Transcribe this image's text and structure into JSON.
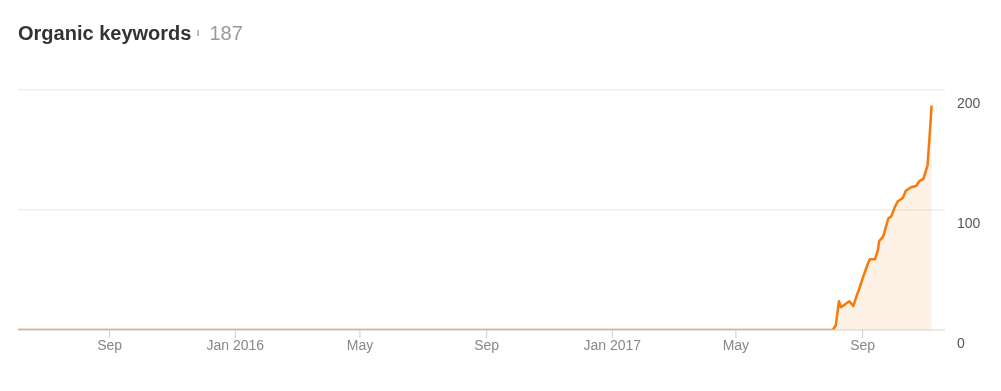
{
  "chart_data": {
    "type": "area",
    "title": "Organic keywords",
    "subtitle": "187",
    "x": [
      "2015-06-04",
      "2017-08-03",
      "2017-08-06",
      "2017-08-09",
      "2017-08-11",
      "2017-08-19",
      "2017-08-23",
      "2017-08-26",
      "2017-08-29",
      "2017-09-01",
      "2017-09-06",
      "2017-09-08",
      "2017-09-13",
      "2017-09-16",
      "2017-09-17",
      "2017-09-21",
      "2017-09-26",
      "2017-09-29",
      "2017-10-02",
      "2017-10-05",
      "2017-10-10",
      "2017-10-13",
      "2017-10-18",
      "2017-10-23",
      "2017-10-26",
      "2017-10-30",
      "2017-11-03",
      "2017-11-05",
      "2017-11-07"
    ],
    "series": [
      {
        "color": "#f77a0c",
        "values": [
          0,
          0,
          4,
          24,
          19,
          24,
          20,
          28,
          35,
          43,
          55,
          59,
          59,
          67,
          74,
          78,
          93,
          95,
          102,
          107,
          110,
          116,
          119,
          120,
          124,
          126,
          137,
          161,
          187
        ]
      }
    ],
    "xlim": [
      "2015-06-04",
      "2017-11-20"
    ],
    "xticks": [
      {
        "value": "2015-09-01",
        "label": "Sep"
      },
      {
        "value": "2016-01-01",
        "label": "Jan 2016"
      },
      {
        "value": "2016-05-01",
        "label": "May"
      },
      {
        "value": "2016-09-01",
        "label": "Sep"
      },
      {
        "value": "2017-01-01",
        "label": "Jan 2017"
      },
      {
        "value": "2017-05-01",
        "label": "May"
      },
      {
        "value": "2017-09-01",
        "label": "Sep"
      }
    ],
    "ylim": [
      0,
      200
    ],
    "yticks": [
      0,
      100,
      200
    ],
    "grid": "y",
    "legend": false,
    "marker": "none",
    "line_style": "solid"
  }
}
